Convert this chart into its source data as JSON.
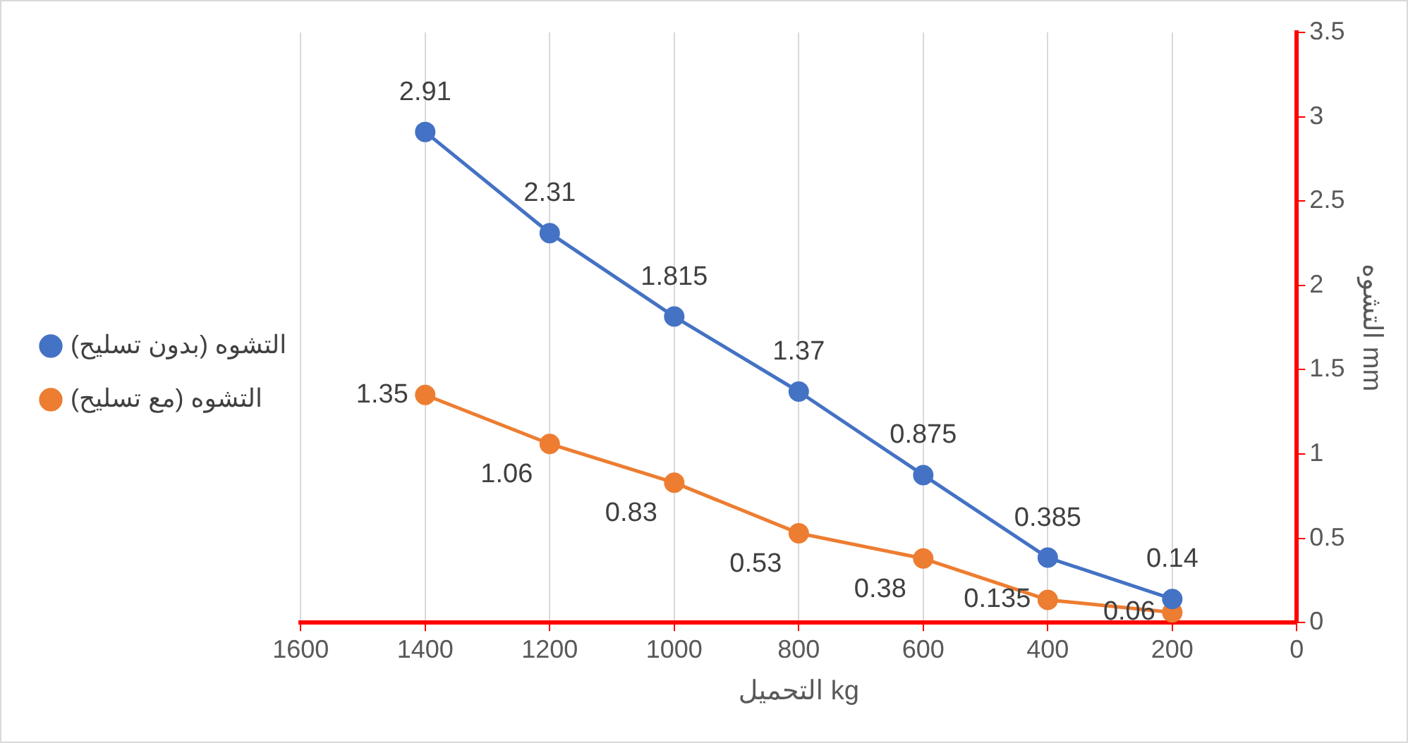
{
  "chart_data": {
    "type": "line",
    "xlabel": "التحميل kg",
    "ylabel": "التشوه mm",
    "x": [
      1400,
      1200,
      1000,
      800,
      600,
      400,
      200
    ],
    "series": [
      {
        "name": "التشوه (بدون تسليح)",
        "color": "#4472c4",
        "values": [
          2.91,
          2.31,
          1.815,
          1.37,
          0.875,
          0.385,
          0.14
        ]
      },
      {
        "name": "التشوه (مع تسليح)",
        "color": "#ed7d31",
        "values": [
          1.35,
          1.06,
          0.83,
          0.53,
          0.38,
          0.135,
          0.06
        ]
      }
    ],
    "xlim": [
      1600,
      0
    ],
    "xticks": [
      1600,
      1400,
      1200,
      1000,
      800,
      600,
      400,
      200,
      0
    ],
    "ylim": [
      0,
      3.5
    ],
    "yticks": [
      0,
      0.5,
      1,
      1.5,
      2,
      2.5,
      3,
      3.5
    ],
    "grid": "x",
    "legend": "left",
    "marker": "circle",
    "line_style": "solid",
    "data_labels": true
  }
}
